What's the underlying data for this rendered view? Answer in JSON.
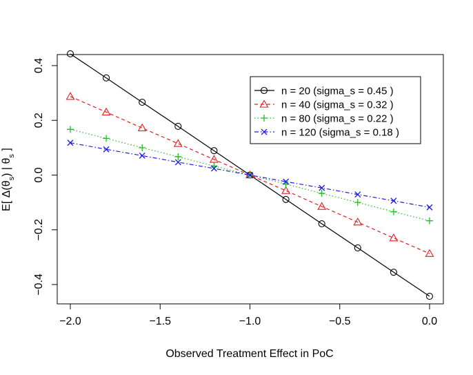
{
  "chart_data": {
    "type": "line",
    "xlabel": "Observed Treatment Effect in PoC",
    "ylabel": "E[ Δ(θs) | θs ]",
    "ylabel_parts": {
      "prefix": "E[ Δ(θ",
      "sub1": "s",
      "middle": ") | θ",
      "sub2": "s",
      "suffix": " ]"
    },
    "xlim": [
      -2.0,
      0.0
    ],
    "ylim": [
      -0.45,
      0.45
    ],
    "x_ticks": [
      -2.0,
      -1.5,
      -1.0,
      -0.5,
      0.0
    ],
    "x_tick_labels": [
      "−2.0",
      "−1.5",
      "−1.0",
      "−0.5",
      "0.0"
    ],
    "y_ticks": [
      -0.4,
      -0.2,
      0.0,
      0.2,
      0.4
    ],
    "y_tick_labels": [
      "−0.4",
      "−0.2",
      "0.0",
      "0.2",
      "0.4"
    ],
    "grid": false,
    "legend_position": "top-right",
    "x": [
      -2.0,
      -1.8,
      -1.6,
      -1.4,
      -1.2,
      -1.0,
      -0.8,
      -0.6,
      -0.4,
      -0.2,
      0.0
    ],
    "series": [
      {
        "name": "n = 20 (sigma_s = 0.45 )",
        "color": "#000000",
        "marker": "circle",
        "dash": "",
        "values": [
          0.443,
          0.355,
          0.266,
          0.178,
          0.089,
          0.0,
          -0.089,
          -0.178,
          -0.266,
          -0.355,
          -0.443
        ]
      },
      {
        "name": "n = 40 (sigma_s = 0.32 )",
        "color": "#e41a1c",
        "marker": "triangle",
        "dash": "5,4",
        "values": [
          0.287,
          0.23,
          0.172,
          0.115,
          0.057,
          0.0,
          -0.057,
          -0.115,
          -0.172,
          -0.23,
          -0.287
        ]
      },
      {
        "name": "n = 80 (sigma_s = 0.22 )",
        "color": "#22bb22",
        "marker": "plus",
        "dash": "1.5,3",
        "values": [
          0.167,
          0.134,
          0.1,
          0.067,
          0.033,
          0.0,
          -0.033,
          -0.067,
          -0.1,
          -0.134,
          -0.167
        ]
      },
      {
        "name": "n = 120 (sigma_s = 0.18 )",
        "color": "#1a1aee",
        "marker": "cross",
        "dash": "6,3,1.5,3",
        "values": [
          0.118,
          0.094,
          0.071,
          0.047,
          0.024,
          0.0,
          -0.024,
          -0.047,
          -0.071,
          -0.094,
          -0.118
        ]
      }
    ]
  }
}
